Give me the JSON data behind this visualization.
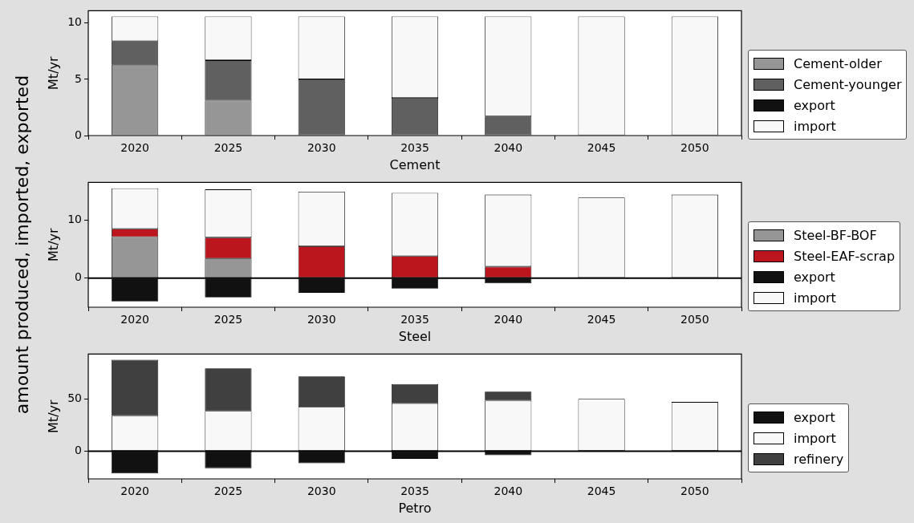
{
  "chart_data": [
    {
      "type": "bar",
      "stacked": true,
      "xlabel": "Cement",
      "ylabel": "Mt/yr",
      "annotations": [
        "amount produced, imported, exported"
      ],
      "categories": [
        "2020",
        "2025",
        "2030",
        "2035",
        "2040",
        "2045",
        "2050"
      ],
      "ylim": [
        0,
        11.1
      ],
      "yticks": [
        0,
        5,
        10
      ],
      "grid": false,
      "legend": "right",
      "series": [
        {
          "name": "Cement-older",
          "color": "#969696",
          "values": [
            6.3,
            3.1,
            0,
            0,
            0,
            0,
            0
          ]
        },
        {
          "name": "Cement-younger",
          "color": "#606060",
          "values": [
            2.1,
            3.6,
            5.0,
            3.35,
            1.7,
            0,
            0
          ]
        },
        {
          "name": "export",
          "color": "#111111",
          "values": [
            0,
            0,
            0,
            0,
            0,
            0,
            0
          ]
        },
        {
          "name": "import",
          "color": "#f8f8f8",
          "values": [
            2.2,
            3.9,
            5.6,
            7.25,
            8.9,
            10.6,
            10.6
          ]
        }
      ]
    },
    {
      "type": "bar",
      "stacked": true,
      "xlabel": "Steel",
      "ylabel": "Mt/yr",
      "categories": [
        "2020",
        "2025",
        "2030",
        "2035",
        "2040",
        "2045",
        "2050"
      ],
      "ylim": [
        -5.0,
        16.5
      ],
      "yticks": [
        0,
        10
      ],
      "grid": false,
      "legend": "right",
      "ref_lines": [
        {
          "axis": "y",
          "value": 0,
          "color": "#000000"
        }
      ],
      "series": [
        {
          "name": "Steel-BF-BOF",
          "color": "#969696",
          "values": [
            7.1,
            3.4,
            0,
            0,
            0,
            0,
            0
          ]
        },
        {
          "name": "Steel-EAF-scrap",
          "color": "#bb161d",
          "values": [
            1.4,
            3.6,
            5.5,
            3.8,
            2.0,
            0,
            0
          ]
        },
        {
          "name": "export",
          "color": "#111111",
          "values": [
            -4.0,
            -3.3,
            -2.5,
            -1.8,
            -0.9,
            0,
            0
          ]
        },
        {
          "name": "import",
          "color": "#f8f8f8",
          "values": [
            7.0,
            8.3,
            9.4,
            10.9,
            12.4,
            13.9,
            14.4
          ]
        }
      ]
    },
    {
      "type": "bar",
      "stacked": true,
      "xlabel": "Petro",
      "ylabel": "Mt/yr",
      "categories": [
        "2020",
        "2025",
        "2030",
        "2035",
        "2040",
        "2045",
        "2050"
      ],
      "ylim": [
        -26.7,
        93.5
      ],
      "yticks": [
        0,
        50
      ],
      "grid": false,
      "legend": "right",
      "ref_lines": [
        {
          "axis": "y",
          "value": 0,
          "color": "#000000"
        }
      ],
      "series": [
        {
          "name": "export",
          "color": "#111111",
          "values": [
            -21.5,
            -16.4,
            -11.6,
            -7.3,
            -3.9,
            0,
            0
          ]
        },
        {
          "name": "import",
          "color": "#f8f8f8",
          "values": [
            34,
            38.8,
            42.7,
            46.1,
            48.7,
            50.4,
            47.4
          ]
        },
        {
          "name": "refinery",
          "color": "#404040",
          "values": [
            54,
            40.9,
            29.3,
            18.6,
            8.6,
            0,
            0
          ]
        }
      ]
    }
  ]
}
